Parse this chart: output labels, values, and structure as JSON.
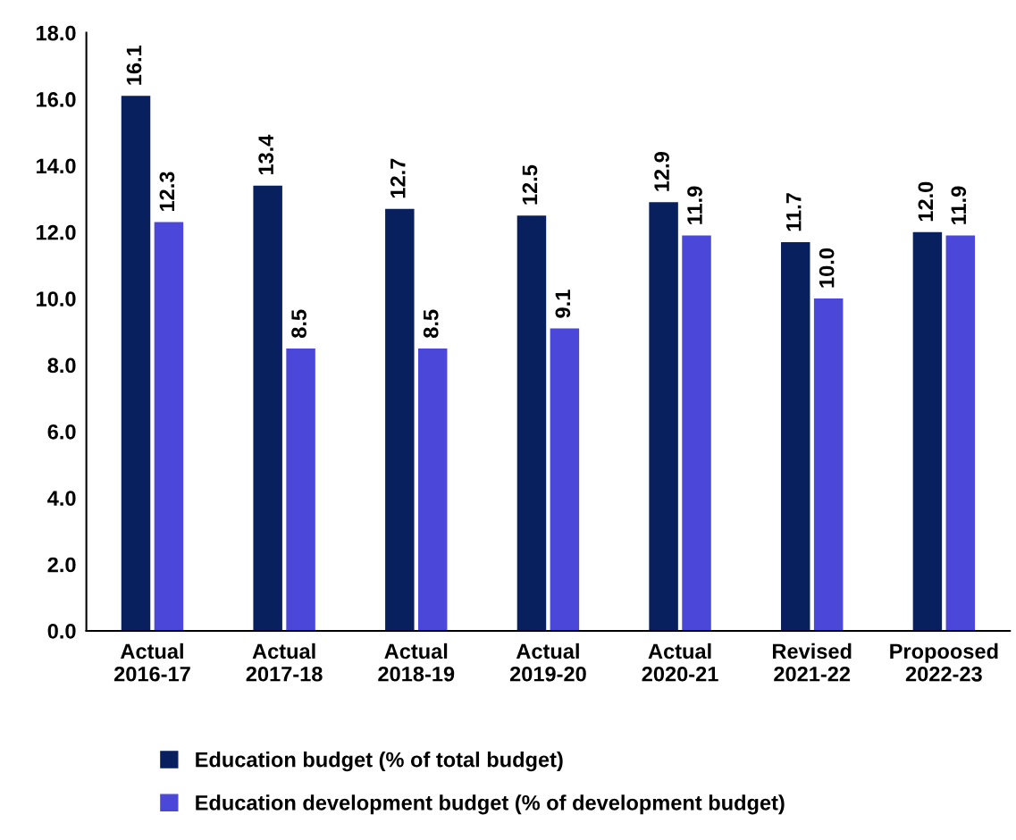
{
  "chart_data": {
    "type": "bar",
    "categories": [
      "Actual\n2016-17",
      "Actual\n2017-18",
      "Actual\n2018-19",
      "Actual\n2019-20",
      "Actual\n2020-21",
      "Revised\n2021-22",
      "Propoosed\n2022-23"
    ],
    "series": [
      {
        "name": "Education budget (% of total budget)",
        "color": "#08205e",
        "values": [
          16.1,
          13.4,
          12.7,
          12.5,
          12.9,
          11.7,
          12.0
        ],
        "value_labels": [
          "16.1",
          "13.4",
          "12.7",
          "12.5",
          "12.9",
          "11.7",
          "12.0"
        ]
      },
      {
        "name": "Education development budget (% of development budget)",
        "color": "#4b47d9",
        "values": [
          12.3,
          8.5,
          8.5,
          9.1,
          11.9,
          10.0,
          11.9
        ],
        "value_labels": [
          "12.3",
          "8.5",
          "8.5",
          "9.1",
          "11.9",
          "10.0",
          "11.9"
        ]
      }
    ],
    "ylim": [
      0,
      18
    ],
    "yticks": [
      {
        "value": 0,
        "label": "0.0"
      },
      {
        "value": 2,
        "label": "2.0"
      },
      {
        "value": 4,
        "label": "4.0"
      },
      {
        "value": 6,
        "label": "6.0"
      },
      {
        "value": 8,
        "label": "8.0"
      },
      {
        "value": 10,
        "label": "10.0"
      },
      {
        "value": 12,
        "label": "12.0"
      },
      {
        "value": 14,
        "label": "14.0"
      },
      {
        "value": 16,
        "label": "16.0"
      },
      {
        "value": 18,
        "label": "18.0"
      }
    ],
    "grid": false,
    "legend": "bottom"
  }
}
